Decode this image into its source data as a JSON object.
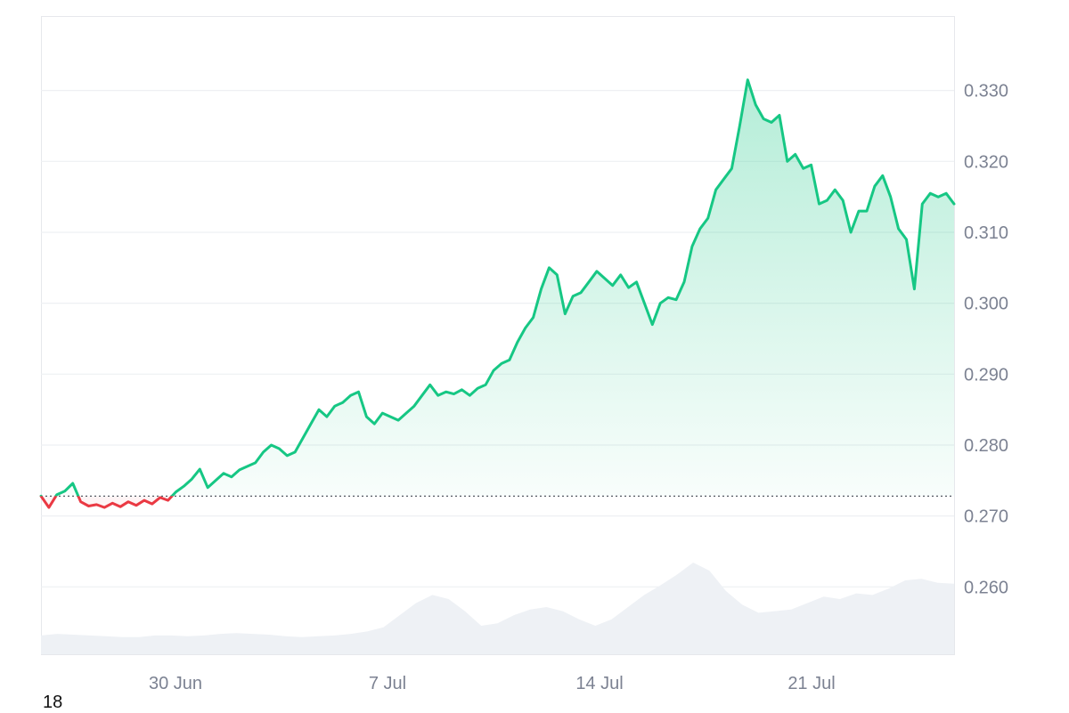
{
  "corner_label": "18",
  "colors": {
    "up": "#16c784",
    "down": "#ea3943",
    "grid": "#eef0f3",
    "axis_text": "#7c8292",
    "volume": "#eef1f5"
  },
  "chart_data": {
    "type": "area",
    "title": "",
    "xlabel": "",
    "ylabel": "",
    "baseline": 0.2728,
    "ylim": [
      0.2505,
      0.3405
    ],
    "yticks": [
      "0.330",
      "0.320",
      "0.310",
      "0.300",
      "0.290",
      "0.280",
      "0.270",
      "0.260"
    ],
    "xticks": [
      "30 Jun",
      "7 Jul",
      "14 Jul",
      "21 Jul"
    ],
    "grid": true,
    "series": [
      {
        "values": [
          0.2728,
          0.2712,
          0.273,
          0.2735,
          0.2746,
          0.272,
          0.2714,
          0.2716,
          0.2712,
          0.2718,
          0.2713,
          0.272,
          0.2715,
          0.2722,
          0.2717,
          0.2726,
          0.2722,
          0.2734,
          0.2742,
          0.2752,
          0.2766,
          0.274,
          0.275,
          0.276,
          0.2755,
          0.2765,
          0.277,
          0.2775,
          0.279,
          0.28,
          0.2795,
          0.2785,
          0.279,
          0.281,
          0.283,
          0.285,
          0.284,
          0.2855,
          0.286,
          0.287,
          0.2875,
          0.284,
          0.283,
          0.2845,
          0.284,
          0.2835,
          0.2845,
          0.2855,
          0.287,
          0.2885,
          0.287,
          0.2875,
          0.2872,
          0.2878,
          0.287,
          0.288,
          0.2885,
          0.2905,
          0.2915,
          0.292,
          0.2945,
          0.2965,
          0.298,
          0.302,
          0.305,
          0.304,
          0.2985,
          0.301,
          0.3015,
          0.303,
          0.3045,
          0.3035,
          0.3025,
          0.304,
          0.3022,
          0.303,
          0.3,
          0.297,
          0.3,
          0.3008,
          0.3005,
          0.303,
          0.308,
          0.3105,
          0.312,
          0.316,
          0.3175,
          0.319,
          0.325,
          0.3315,
          0.328,
          0.326,
          0.3255,
          0.3265,
          0.32,
          0.321,
          0.319,
          0.3195,
          0.314,
          0.3145,
          0.316,
          0.3145,
          0.31,
          0.313,
          0.313,
          0.3165,
          0.318,
          0.315,
          0.3105,
          0.309,
          0.302,
          0.314,
          0.3155,
          0.315,
          0.3155,
          0.314
        ]
      }
    ],
    "volume": [
      0.1,
      0.12,
      0.11,
      0.1,
      0.09,
      0.08,
      0.08,
      0.1,
      0.1,
      0.09,
      0.1,
      0.12,
      0.13,
      0.12,
      0.11,
      0.09,
      0.08,
      0.09,
      0.1,
      0.12,
      0.15,
      0.2,
      0.35,
      0.5,
      0.6,
      0.55,
      0.4,
      0.22,
      0.25,
      0.35,
      0.42,
      0.45,
      0.4,
      0.3,
      0.22,
      0.3,
      0.45,
      0.6,
      0.72,
      0.85,
      1.0,
      0.9,
      0.65,
      0.48,
      0.38,
      0.4,
      0.42,
      0.5,
      0.58,
      0.55,
      0.62,
      0.6,
      0.68,
      0.78,
      0.8,
      0.75,
      0.74
    ]
  }
}
